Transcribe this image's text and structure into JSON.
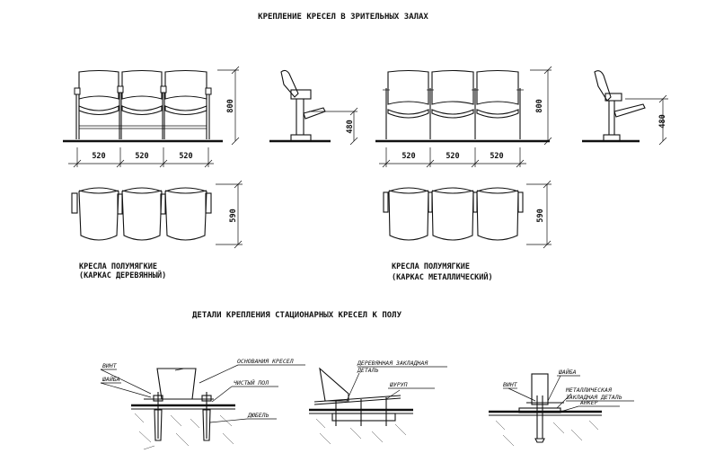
{
  "title": "КРЕПЛЕНИЕ КРЕСЕЛ В ЗРИТЕЛЬНЫХ ЗАЛАХ",
  "dims": {
    "h800": "800",
    "h480": "480",
    "w520": "520",
    "d590": "590"
  },
  "captions": {
    "wood_1": "КРЕСЛА ПОЛУМЯГКИЕ",
    "wood_2": "(КАРКАС ДЕРЕВЯННЫЙ)",
    "metal_1": "КРЕСЛА ПОЛУМЯГКИЕ",
    "metal_2": "(КАРКАС МЕТАЛЛИЧЕСКИЙ)"
  },
  "details_title": "ДЕТАЛИ КРЕПЛЕНИЯ СТАЦИОНАРНЫХ КРЕСЕЛ К ПОЛУ",
  "callouts": {
    "vint": "ВИНТ",
    "shaiba": "ШАЙБА",
    "osnovanie": "ОСНОВАНИЯ КРЕСЕЛ",
    "chisty_pol": "ЧИСТЫЙ ПОЛ",
    "dyubel": "ДЮБЕЛЬ",
    "wood_insert_1": "ДЕРЕВЯННАЯ ЗАКЛАДНАЯ",
    "wood_insert_2": "ДЕТАЛЬ",
    "shurup": "ШУРУП",
    "vint2": "ВИНТ",
    "shaiba2": "ШАЙБА",
    "metal_insert_1": "МЕТАЛЛИЧЕСКАЯ",
    "metal_insert_2": "ЗАКЛАДНАЯ ДЕТАЛЬ",
    "ankor": "АНКЕР"
  }
}
